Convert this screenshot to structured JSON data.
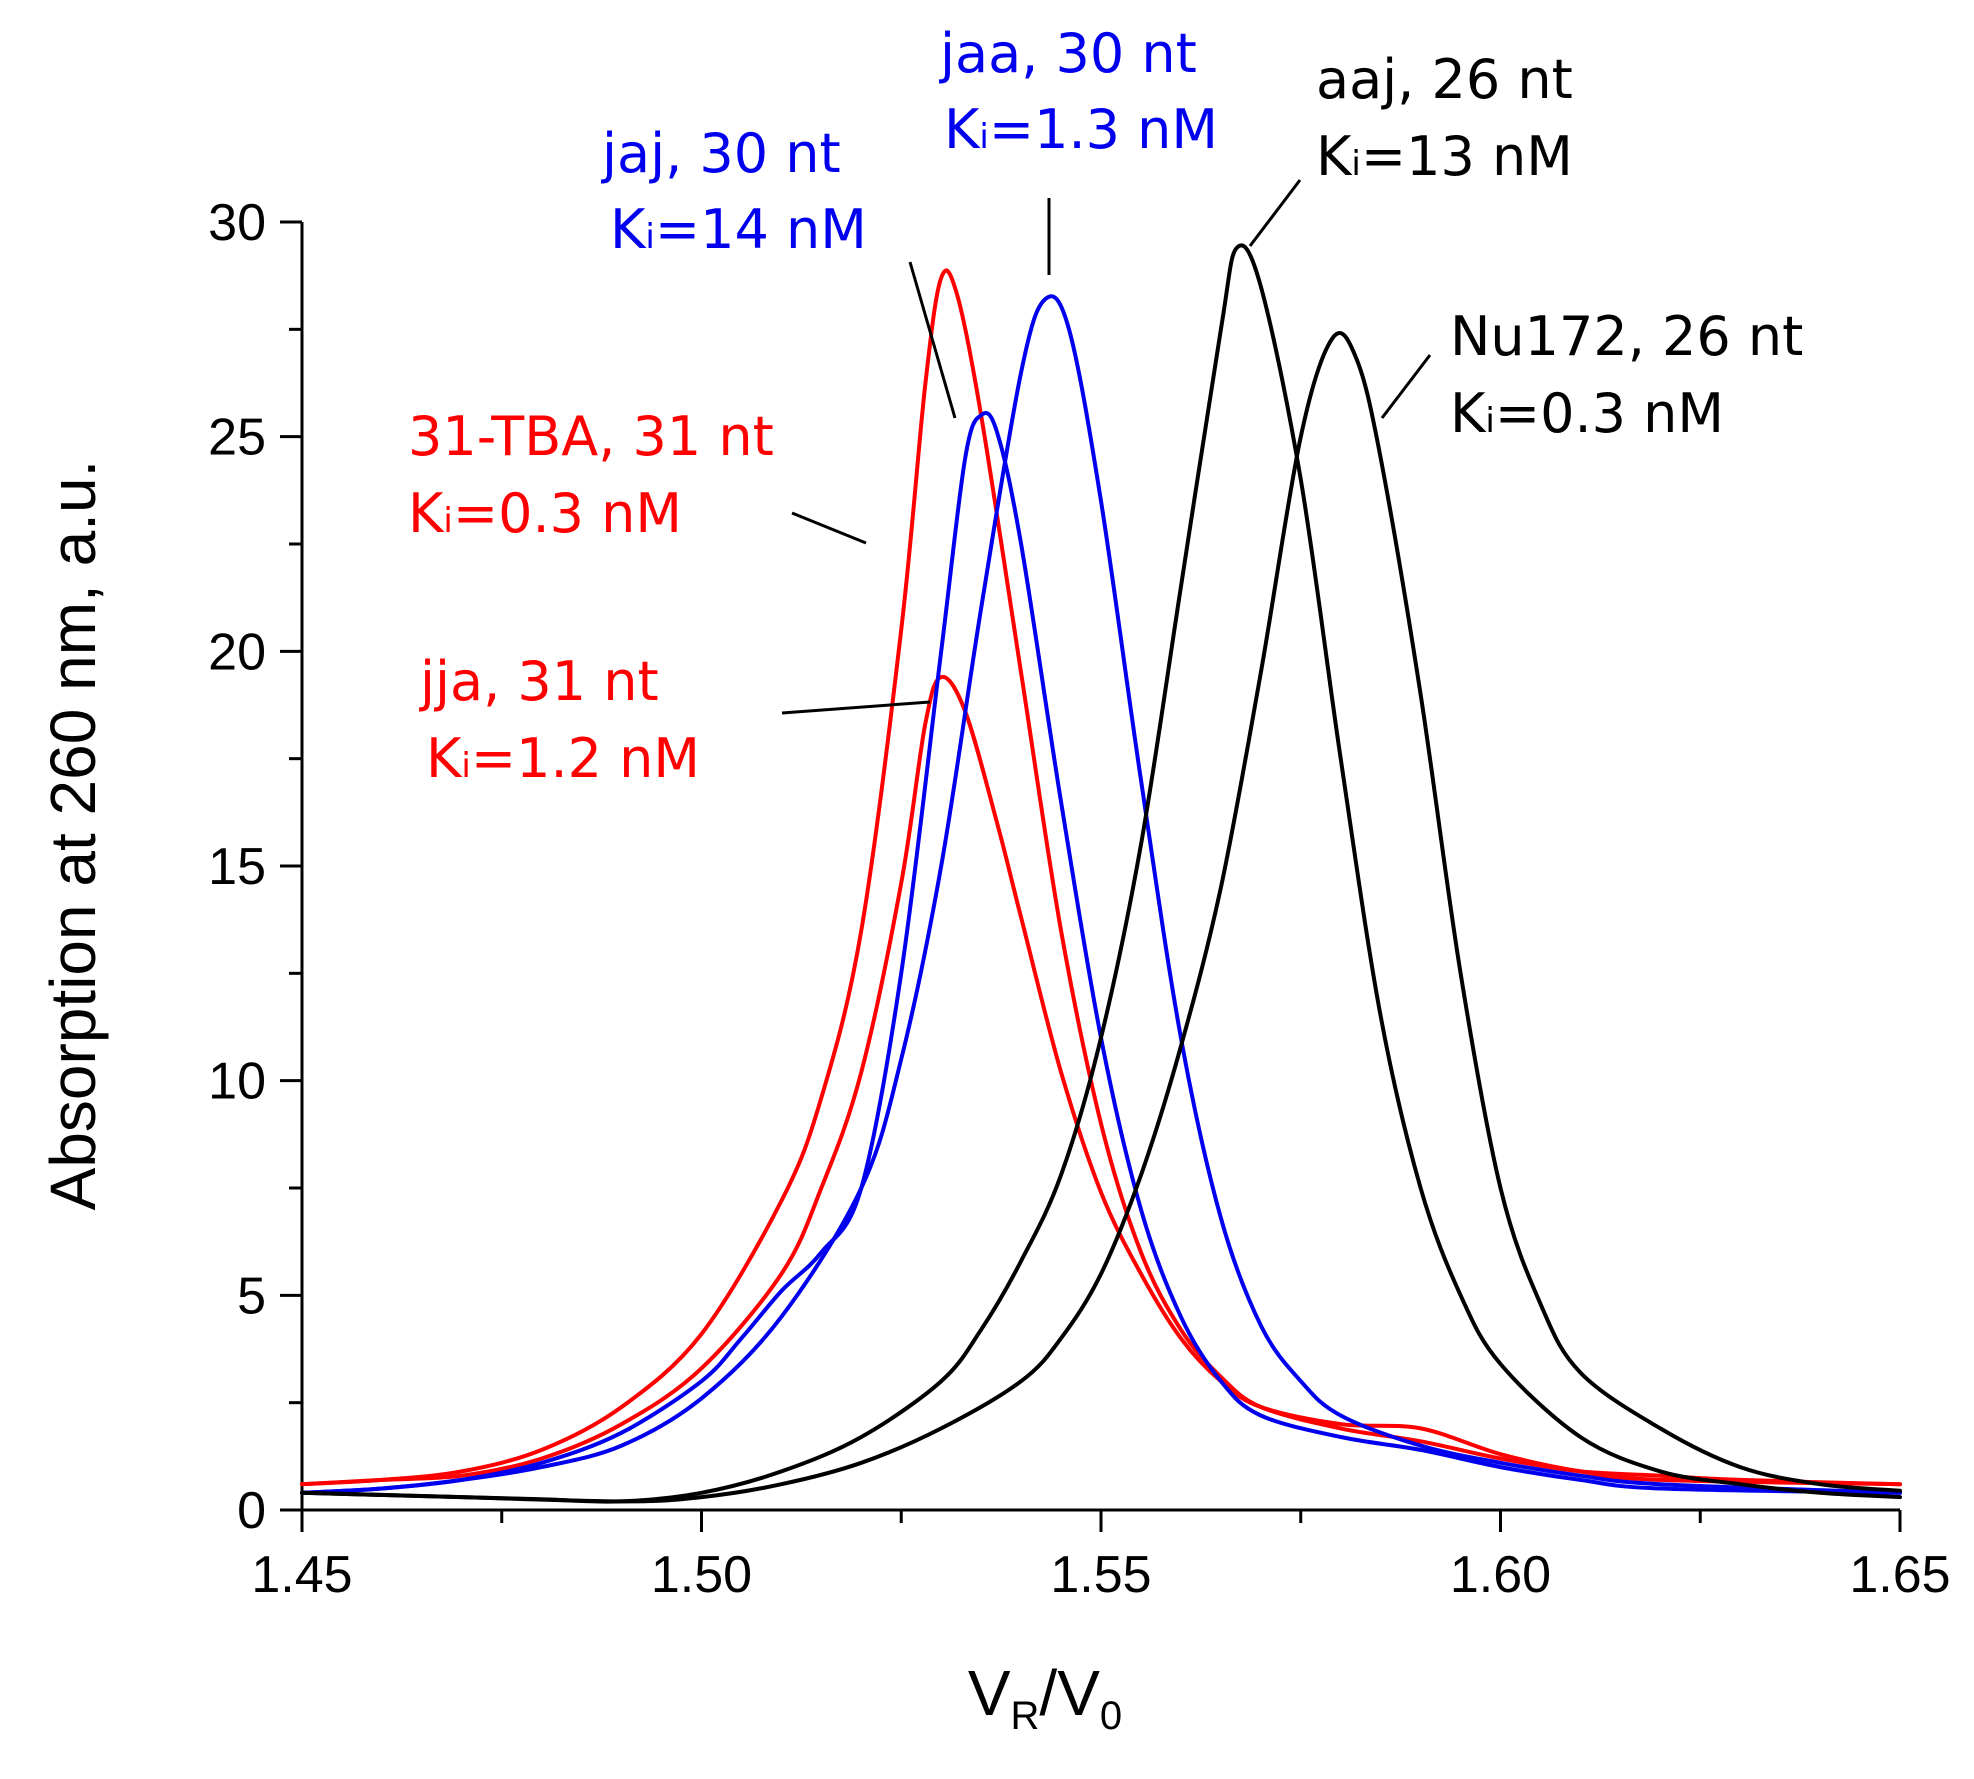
{
  "chart_data": {
    "type": "line",
    "title": "",
    "xlabel": {
      "main": "V",
      "sub1": "R",
      "sep": "/V",
      "sub2": "0"
    },
    "ylabel": "Absorption at 260 nm, a.u.",
    "xlim": [
      1.45,
      1.65
    ],
    "ylim": [
      0,
      30
    ],
    "xticks": [
      {
        "value": 1.45,
        "label": "1.45"
      },
      {
        "value": 1.5,
        "label": "1.50"
      },
      {
        "value": 1.55,
        "label": "1.55"
      },
      {
        "value": 1.6,
        "label": "1.60"
      },
      {
        "value": 1.65,
        "label": "1.65"
      }
    ],
    "yticks": [
      {
        "value": 0,
        "label": "0"
      },
      {
        "value": 5,
        "label": "5"
      },
      {
        "value": 10,
        "label": "10"
      },
      {
        "value": 15,
        "label": "15"
      },
      {
        "value": 20,
        "label": "20"
      },
      {
        "value": 25,
        "label": "25"
      },
      {
        "value": 30,
        "label": "30"
      }
    ],
    "grid": false,
    "colors": {
      "red": "#ff0000",
      "blue": "#0000ee",
      "black": "#000000"
    },
    "series": [
      {
        "name": "31-TBA",
        "color": "#ff0000",
        "points": [
          [
            1.45,
            0.6
          ],
          [
            1.46,
            0.7
          ],
          [
            1.47,
            0.9
          ],
          [
            1.48,
            1.4
          ],
          [
            1.49,
            2.4
          ],
          [
            1.5,
            4.1
          ],
          [
            1.51,
            7.2
          ],
          [
            1.515,
            9.6
          ],
          [
            1.52,
            13.5
          ],
          [
            1.525,
            20.5
          ],
          [
            1.528,
            26.2
          ],
          [
            1.53,
            28.7
          ],
          [
            1.532,
            28.3
          ],
          [
            1.535,
            25.5
          ],
          [
            1.54,
            19.5
          ],
          [
            1.545,
            13.5
          ],
          [
            1.55,
            9.0
          ],
          [
            1.555,
            6.0
          ],
          [
            1.56,
            4.2
          ],
          [
            1.565,
            3.1
          ],
          [
            1.57,
            2.4
          ],
          [
            1.58,
            1.9
          ],
          [
            1.59,
            1.6
          ],
          [
            1.6,
            1.2
          ],
          [
            1.61,
            0.9
          ],
          [
            1.62,
            0.8
          ],
          [
            1.63,
            0.7
          ],
          [
            1.65,
            0.6
          ]
        ]
      },
      {
        "name": "jja",
        "color": "#ff0000",
        "points": [
          [
            1.45,
            0.6
          ],
          [
            1.46,
            0.7
          ],
          [
            1.47,
            0.8
          ],
          [
            1.48,
            1.2
          ],
          [
            1.49,
            2.0
          ],
          [
            1.5,
            3.3
          ],
          [
            1.51,
            5.5
          ],
          [
            1.515,
            7.5
          ],
          [
            1.52,
            10.2
          ],
          [
            1.525,
            14.6
          ],
          [
            1.528,
            18.3
          ],
          [
            1.53,
            19.4
          ],
          [
            1.533,
            18.6
          ],
          [
            1.537,
            16.0
          ],
          [
            1.54,
            13.8
          ],
          [
            1.545,
            10.2
          ],
          [
            1.55,
            7.4
          ],
          [
            1.555,
            5.5
          ],
          [
            1.56,
            4.0
          ],
          [
            1.565,
            3.0
          ],
          [
            1.57,
            2.4
          ],
          [
            1.58,
            2.0
          ],
          [
            1.59,
            1.9
          ],
          [
            1.6,
            1.3
          ],
          [
            1.61,
            0.9
          ],
          [
            1.62,
            0.7
          ],
          [
            1.65,
            0.6
          ]
        ]
      },
      {
        "name": "jaj",
        "color": "#0000ee",
        "points": [
          [
            1.45,
            0.4
          ],
          [
            1.46,
            0.5
          ],
          [
            1.47,
            0.7
          ],
          [
            1.48,
            1.1
          ],
          [
            1.49,
            1.8
          ],
          [
            1.5,
            3.0
          ],
          [
            1.505,
            4.0
          ],
          [
            1.51,
            5.1
          ],
          [
            1.515,
            6.0
          ],
          [
            1.52,
            7.5
          ],
          [
            1.525,
            12.5
          ],
          [
            1.53,
            20.0
          ],
          [
            1.533,
            24.5
          ],
          [
            1.535,
            25.5
          ],
          [
            1.537,
            25.1
          ],
          [
            1.54,
            22.5
          ],
          [
            1.545,
            16.5
          ],
          [
            1.55,
            11.0
          ],
          [
            1.555,
            7.0
          ],
          [
            1.56,
            4.5
          ],
          [
            1.565,
            3.0
          ],
          [
            1.57,
            2.2
          ],
          [
            1.58,
            1.7
          ],
          [
            1.59,
            1.4
          ],
          [
            1.6,
            1.0
          ],
          [
            1.61,
            0.7
          ],
          [
            1.62,
            0.5
          ],
          [
            1.65,
            0.4
          ]
        ]
      },
      {
        "name": "jaa",
        "color": "#0000ee",
        "points": [
          [
            1.45,
            0.4
          ],
          [
            1.46,
            0.5
          ],
          [
            1.47,
            0.7
          ],
          [
            1.48,
            1.0
          ],
          [
            1.49,
            1.5
          ],
          [
            1.5,
            2.6
          ],
          [
            1.51,
            4.5
          ],
          [
            1.52,
            7.5
          ],
          [
            1.525,
            10.5
          ],
          [
            1.53,
            15.0
          ],
          [
            1.535,
            21.0
          ],
          [
            1.54,
            26.5
          ],
          [
            1.543,
            28.2
          ],
          [
            1.546,
            27.5
          ],
          [
            1.55,
            23.5
          ],
          [
            1.555,
            17.0
          ],
          [
            1.56,
            11.0
          ],
          [
            1.565,
            6.8
          ],
          [
            1.57,
            4.3
          ],
          [
            1.575,
            3.0
          ],
          [
            1.58,
            2.2
          ],
          [
            1.59,
            1.5
          ],
          [
            1.6,
            1.1
          ],
          [
            1.61,
            0.8
          ],
          [
            1.62,
            0.6
          ],
          [
            1.65,
            0.4
          ]
        ]
      },
      {
        "name": "aaj",
        "color": "#000000",
        "points": [
          [
            1.45,
            0.4
          ],
          [
            1.47,
            0.3
          ],
          [
            1.48,
            0.25
          ],
          [
            1.49,
            0.2
          ],
          [
            1.5,
            0.4
          ],
          [
            1.51,
            0.9
          ],
          [
            1.52,
            1.7
          ],
          [
            1.53,
            3.0
          ],
          [
            1.535,
            4.2
          ],
          [
            1.54,
            5.8
          ],
          [
            1.545,
            7.8
          ],
          [
            1.55,
            11.0
          ],
          [
            1.555,
            15.5
          ],
          [
            1.56,
            21.5
          ],
          [
            1.565,
            27.5
          ],
          [
            1.567,
            29.4
          ],
          [
            1.57,
            28.5
          ],
          [
            1.575,
            24.0
          ],
          [
            1.58,
            17.5
          ],
          [
            1.585,
            11.5
          ],
          [
            1.59,
            7.5
          ],
          [
            1.595,
            5.0
          ],
          [
            1.6,
            3.4
          ],
          [
            1.61,
            1.7
          ],
          [
            1.62,
            0.9
          ],
          [
            1.63,
            0.6
          ],
          [
            1.64,
            0.4
          ],
          [
            1.65,
            0.3
          ]
        ]
      },
      {
        "name": "Nu172",
        "color": "#000000",
        "points": [
          [
            1.45,
            0.4
          ],
          [
            1.47,
            0.3
          ],
          [
            1.49,
            0.2
          ],
          [
            1.5,
            0.3
          ],
          [
            1.51,
            0.6
          ],
          [
            1.52,
            1.1
          ],
          [
            1.53,
            1.9
          ],
          [
            1.54,
            3.0
          ],
          [
            1.545,
            4.0
          ],
          [
            1.55,
            5.5
          ],
          [
            1.555,
            7.8
          ],
          [
            1.56,
            10.8
          ],
          [
            1.565,
            14.5
          ],
          [
            1.57,
            19.5
          ],
          [
            1.575,
            25.0
          ],
          [
            1.579,
            27.3
          ],
          [
            1.582,
            26.8
          ],
          [
            1.585,
            24.5
          ],
          [
            1.59,
            19.0
          ],
          [
            1.595,
            12.5
          ],
          [
            1.6,
            7.5
          ],
          [
            1.605,
            4.8
          ],
          [
            1.61,
            3.2
          ],
          [
            1.62,
            1.9
          ],
          [
            1.63,
            1.0
          ],
          [
            1.64,
            0.6
          ],
          [
            1.65,
            0.45
          ]
        ]
      }
    ],
    "annotations": [
      {
        "name": "31-TBA",
        "line1": "31-TBA, 31 nt",
        "k_prefix": "K",
        "k_sub": "i",
        "k_rest": "=0.3 nM",
        "color": "#ff0000"
      },
      {
        "name": "jja",
        "line1": "jja, 31 nt",
        "k_prefix": "K",
        "k_sub": "i",
        "k_rest": "=1.2 nM",
        "color": "#ff0000"
      },
      {
        "name": "jaj",
        "line1": "jaj, 30 nt",
        "k_prefix": "K",
        "k_sub": "i",
        "k_rest": "=14 nM",
        "color": "#0000ee"
      },
      {
        "name": "jaa",
        "line1": "jaa, 30 nt",
        "k_prefix": "K",
        "k_sub": "i",
        "k_rest": "=1.3 nM",
        "color": "#0000ee"
      },
      {
        "name": "aaj",
        "line1": "aaj, 26 nt",
        "k_prefix": "K",
        "k_sub": "i",
        "k_rest": "=13 nM",
        "color": "#000000"
      },
      {
        "name": "Nu172",
        "line1": "Nu172, 26 nt",
        "k_prefix": "K",
        "k_sub": "i",
        "k_rest": "=0.3 nM",
        "color": "#000000"
      }
    ]
  }
}
